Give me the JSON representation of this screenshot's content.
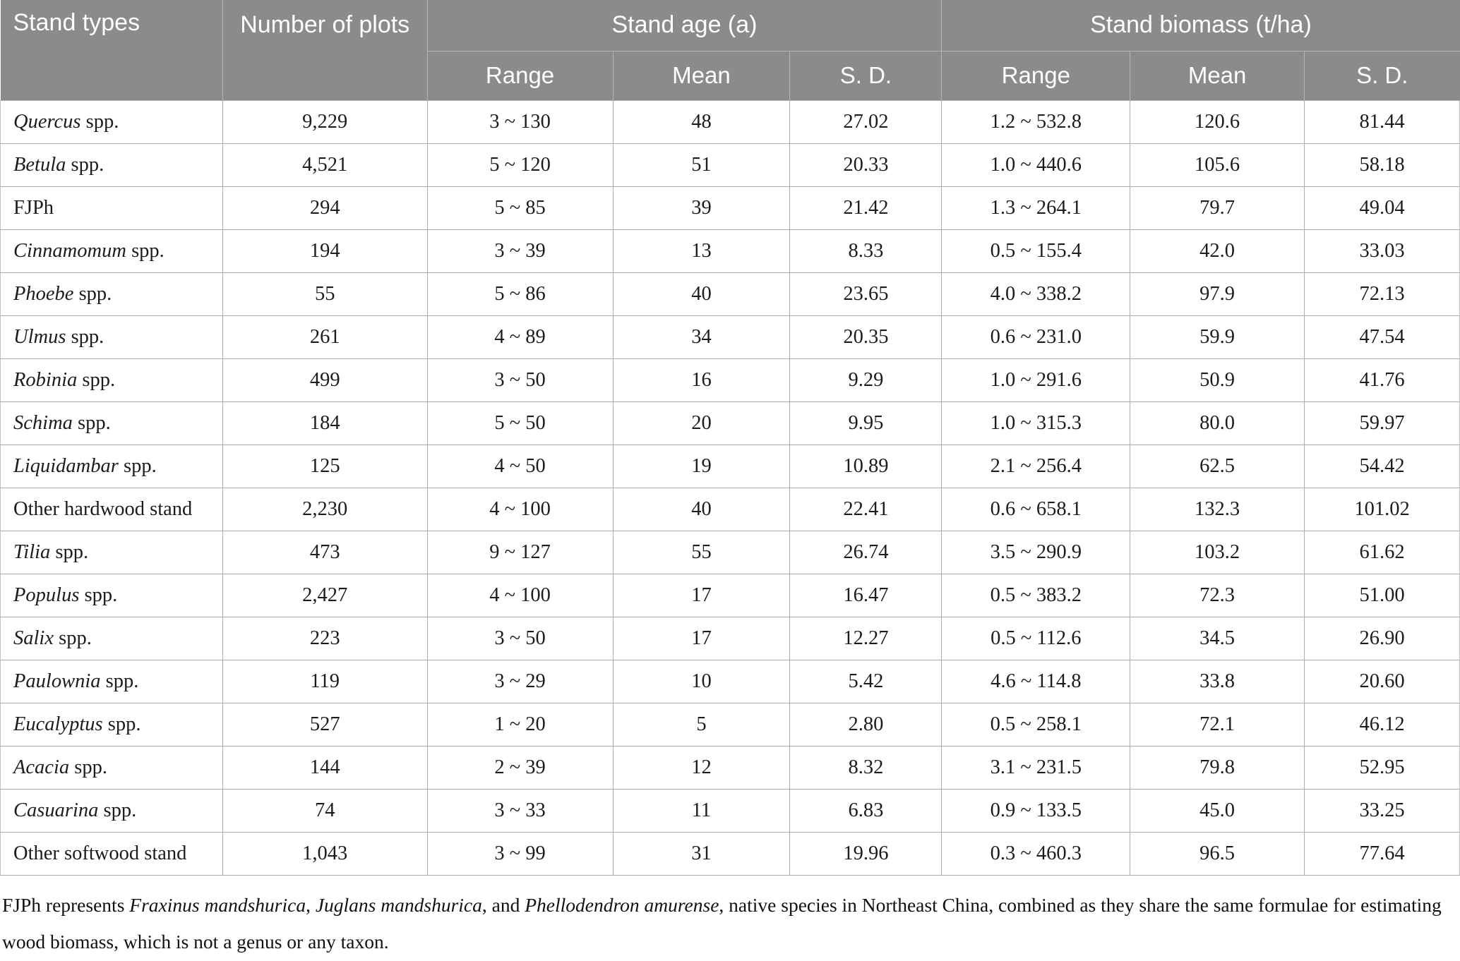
{
  "table": {
    "headers": {
      "stand_types": "Stand types",
      "number_of_plots": "Number of plots",
      "stand_age_group": "Stand age (a)",
      "stand_biomass_group": "Stand biomass (t/ha)",
      "sub_range": "Range",
      "sub_mean": "Mean",
      "sub_sd": "S. D."
    },
    "rows": [
      {
        "name_italic": "Quercus",
        "name_plain": " spp.",
        "plots": "9,229",
        "age_range": "3 ~ 130",
        "age_mean": "48",
        "age_sd": "27.02",
        "bio_range": "1.2 ~ 532.8",
        "bio_mean": "120.6",
        "bio_sd": "81.44"
      },
      {
        "name_italic": "Betula",
        "name_plain": " spp.",
        "plots": "4,521",
        "age_range": "5 ~ 120",
        "age_mean": "51",
        "age_sd": "20.33",
        "bio_range": "1.0 ~ 440.6",
        "bio_mean": "105.6",
        "bio_sd": "58.18"
      },
      {
        "name_italic": "",
        "name_plain": "FJPh",
        "plots": "294",
        "age_range": "5 ~ 85",
        "age_mean": "39",
        "age_sd": "21.42",
        "bio_range": "1.3 ~ 264.1",
        "bio_mean": "79.7",
        "bio_sd": "49.04"
      },
      {
        "name_italic": "Cinnamomum",
        "name_plain": " spp.",
        "plots": "194",
        "age_range": "3 ~ 39",
        "age_mean": "13",
        "age_sd": "8.33",
        "bio_range": "0.5 ~ 155.4",
        "bio_mean": "42.0",
        "bio_sd": "33.03"
      },
      {
        "name_italic": "Phoebe",
        "name_plain": " spp.",
        "plots": "55",
        "age_range": "5 ~ 86",
        "age_mean": "40",
        "age_sd": "23.65",
        "bio_range": "4.0 ~ 338.2",
        "bio_mean": "97.9",
        "bio_sd": "72.13"
      },
      {
        "name_italic": "Ulmus",
        "name_plain": " spp.",
        "plots": "261",
        "age_range": "4 ~ 89",
        "age_mean": "34",
        "age_sd": "20.35",
        "bio_range": "0.6 ~ 231.0",
        "bio_mean": "59.9",
        "bio_sd": "47.54"
      },
      {
        "name_italic": "Robinia",
        "name_plain": " spp.",
        "plots": "499",
        "age_range": "3 ~ 50",
        "age_mean": "16",
        "age_sd": "9.29",
        "bio_range": "1.0 ~ 291.6",
        "bio_mean": "50.9",
        "bio_sd": "41.76"
      },
      {
        "name_italic": "Schima",
        "name_plain": " spp.",
        "plots": "184",
        "age_range": "5 ~ 50",
        "age_mean": "20",
        "age_sd": "9.95",
        "bio_range": "1.0 ~ 315.3",
        "bio_mean": "80.0",
        "bio_sd": "59.97"
      },
      {
        "name_italic": "Liquidambar",
        "name_plain": " spp.",
        "plots": "125",
        "age_range": "4 ~ 50",
        "age_mean": "19",
        "age_sd": "10.89",
        "bio_range": "2.1 ~ 256.4",
        "bio_mean": "62.5",
        "bio_sd": "54.42"
      },
      {
        "name_italic": "",
        "name_plain": "Other hardwood stand",
        "plots": "2,230",
        "age_range": "4 ~ 100",
        "age_mean": "40",
        "age_sd": "22.41",
        "bio_range": "0.6 ~ 658.1",
        "bio_mean": "132.3",
        "bio_sd": "101.02"
      },
      {
        "name_italic": "Tilia",
        "name_plain": " spp.",
        "plots": "473",
        "age_range": "9 ~ 127",
        "age_mean": "55",
        "age_sd": "26.74",
        "bio_range": "3.5 ~ 290.9",
        "bio_mean": "103.2",
        "bio_sd": "61.62"
      },
      {
        "name_italic": "Populus",
        "name_plain": " spp.",
        "plots": "2,427",
        "age_range": "4 ~ 100",
        "age_mean": "17",
        "age_sd": "16.47",
        "bio_range": "0.5 ~ 383.2",
        "bio_mean": "72.3",
        "bio_sd": "51.00"
      },
      {
        "name_italic": "Salix",
        "name_plain": " spp.",
        "plots": "223",
        "age_range": "3 ~ 50",
        "age_mean": "17",
        "age_sd": "12.27",
        "bio_range": "0.5 ~ 112.6",
        "bio_mean": "34.5",
        "bio_sd": "26.90"
      },
      {
        "name_italic": "Paulownia",
        "name_plain": " spp.",
        "plots": "119",
        "age_range": "3 ~ 29",
        "age_mean": "10",
        "age_sd": "5.42",
        "bio_range": "4.6 ~ 114.8",
        "bio_mean": "33.8",
        "bio_sd": "20.60"
      },
      {
        "name_italic": "Eucalyptus",
        "name_plain": " spp.",
        "plots": "527",
        "age_range": "1 ~ 20",
        "age_mean": "5",
        "age_sd": "2.80",
        "bio_range": "0.5 ~ 258.1",
        "bio_mean": "72.1",
        "bio_sd": "46.12"
      },
      {
        "name_italic": "Acacia",
        "name_plain": " spp.",
        "plots": "144",
        "age_range": "2 ~ 39",
        "age_mean": "12",
        "age_sd": "8.32",
        "bio_range": "3.1 ~ 231.5",
        "bio_mean": "79.8",
        "bio_sd": "52.95"
      },
      {
        "name_italic": "Casuarina",
        "name_plain": " spp.",
        "plots": "74",
        "age_range": "3 ~ 33",
        "age_mean": "11",
        "age_sd": "6.83",
        "bio_range": "0.9 ~ 133.5",
        "bio_mean": "45.0",
        "bio_sd": "33.25"
      },
      {
        "name_italic": "",
        "name_plain": "Other softwood stand",
        "plots": "1,043",
        "age_range": "3 ~ 99",
        "age_mean": "31",
        "age_sd": "19.96",
        "bio_range": "0.3 ~ 460.3",
        "bio_mean": "96.5",
        "bio_sd": "77.64"
      }
    ]
  },
  "footnote": {
    "segments": [
      {
        "text": "FJPh represents ",
        "italic": false
      },
      {
        "text": "Fraxinus mandshurica",
        "italic": true
      },
      {
        "text": ", ",
        "italic": false
      },
      {
        "text": "Juglans mandshurica",
        "italic": true
      },
      {
        "text": ", and ",
        "italic": false
      },
      {
        "text": "Phellodendron amurense",
        "italic": true
      },
      {
        "text": ", native species in Northeast China, combined as they share the same formulae for estimating wood biomass, which is not a genus or any taxon.",
        "italic": false
      }
    ]
  },
  "colors": {
    "header_bg": "#8b8b8b",
    "header_text": "#ffffff",
    "body_border": "#aaaaaa",
    "body_text": "#1c1c1c"
  }
}
